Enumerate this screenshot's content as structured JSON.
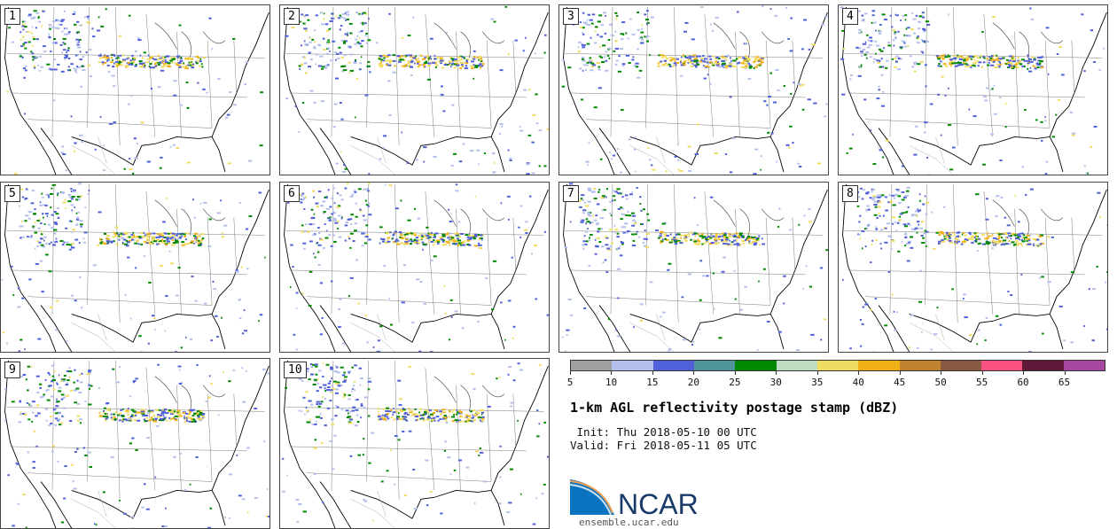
{
  "panels": [
    {
      "label": "1"
    },
    {
      "label": "2"
    },
    {
      "label": "3"
    },
    {
      "label": "4"
    },
    {
      "label": "5"
    },
    {
      "label": "6"
    },
    {
      "label": "7"
    },
    {
      "label": "8"
    },
    {
      "label": "9"
    },
    {
      "label": "10"
    }
  ],
  "colorbar": {
    "ticks": [
      "5",
      "10",
      "15",
      "20",
      "25",
      "30",
      "35",
      "40",
      "45",
      "50",
      "55",
      "60",
      "65"
    ],
    "colors": [
      "#a0a0a0",
      "#b4c0ec",
      "#5060d8",
      "#50949c",
      "#008800",
      "#c0dcc0",
      "#f0dc60",
      "#f0b018",
      "#c08430",
      "#885840",
      "#f85080",
      "#601838",
      "#a848a0"
    ]
  },
  "title": "1-km AGL reflectivity postage stamp (dBZ)",
  "init": " Init: Thu 2018-05-10 00 UTC",
  "valid": "Valid: Fri 2018-05-11 05 UTC",
  "logo": {
    "text": "NCAR"
  },
  "url": "ensemble.ucar.edu"
}
